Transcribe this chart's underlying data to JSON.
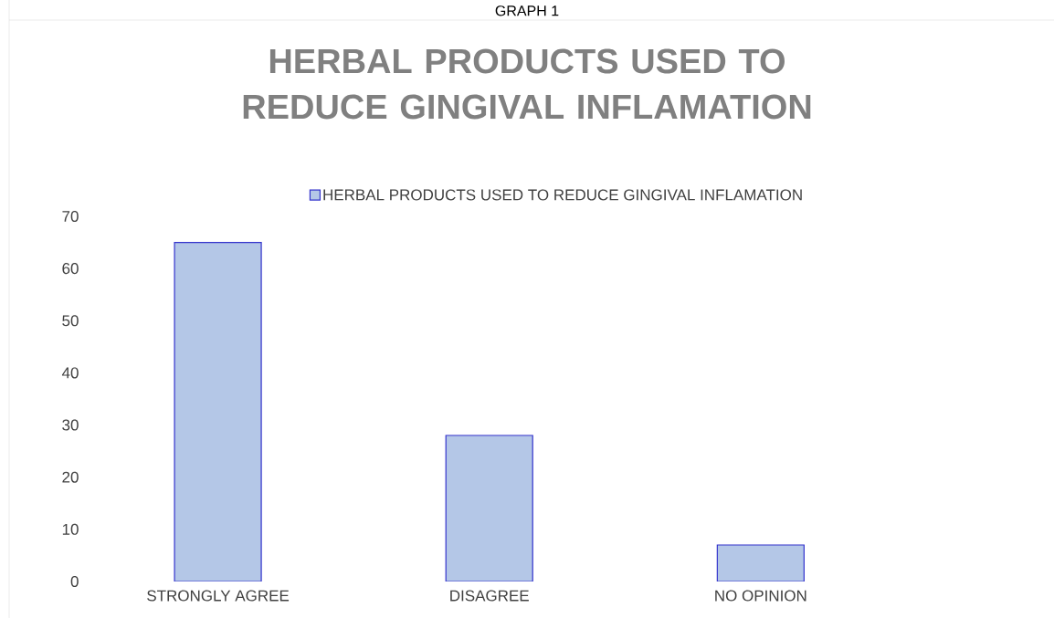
{
  "chart_data": {
    "type": "bar",
    "title": "HERBAL PRODUCTS USED TO REDUCE GINGIVAL INFLAMATION",
    "annotations": [
      "GRAPH 1"
    ],
    "categories": [
      "STRONGLY AGREE",
      "DISAGREE",
      "NO OPINION"
    ],
    "series": [
      {
        "name": "HERBAL PRODUCTS USED TO REDUCE GINGIVAL INFLAMATION",
        "color": "#b4c7e7",
        "values": [
          65,
          28,
          7
        ]
      }
    ],
    "ylim": [
      0,
      70
    ],
    "yticks": [
      0,
      10,
      20,
      30,
      40,
      50,
      60,
      70
    ],
    "legend": "top",
    "grid": false
  }
}
